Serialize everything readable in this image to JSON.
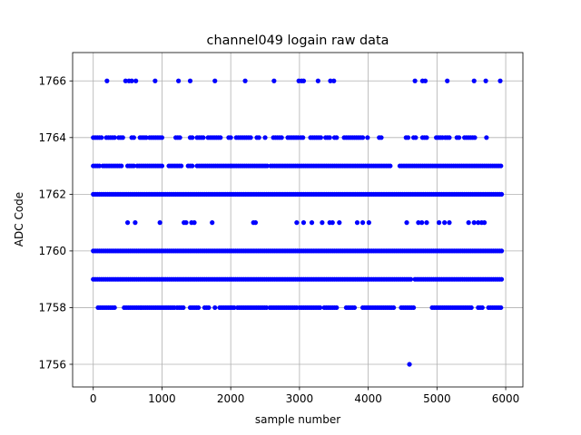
{
  "chart_data": {
    "type": "scatter",
    "title": "channel049 logain raw data",
    "xlabel": "sample number",
    "ylabel": "ADC Code",
    "xlim": [
      -300,
      6250
    ],
    "ylim": [
      1755.2,
      1767.0
    ],
    "xticks": [
      0,
      1000,
      2000,
      3000,
      4000,
      5000,
      6000
    ],
    "yticks": [
      1756,
      1758,
      1760,
      1762,
      1764,
      1766
    ],
    "grid": true,
    "legend": "none",
    "marker_color": "#0000ff",
    "series": [
      {
        "values_note_free": true,
        "points": [
          [
            200,
            1766
          ],
          [
            470,
            1766
          ],
          [
            520,
            1766
          ],
          [
            560,
            1766
          ],
          [
            620,
            1766
          ],
          [
            900,
            1766
          ],
          [
            1240,
            1766
          ],
          [
            1410,
            1766
          ],
          [
            1770,
            1766
          ],
          [
            2210,
            1766
          ],
          [
            2630,
            1766
          ],
          [
            2990,
            1766
          ],
          [
            3030,
            1766
          ],
          [
            3060,
            1766
          ],
          [
            3270,
            1766
          ],
          [
            3450,
            1766
          ],
          [
            3500,
            1766
          ],
          [
            4680,
            1766
          ],
          [
            4790,
            1766
          ],
          [
            4830,
            1766
          ],
          [
            5150,
            1766
          ],
          [
            5540,
            1766
          ],
          [
            5710,
            1766
          ],
          [
            5920,
            1766
          ],
          [
            500,
            1761
          ],
          [
            610,
            1761
          ],
          [
            970,
            1761
          ],
          [
            1320,
            1761
          ],
          [
            1350,
            1761
          ],
          [
            1430,
            1761
          ],
          [
            1470,
            1761
          ],
          [
            1730,
            1761
          ],
          [
            2330,
            1761
          ],
          [
            2360,
            1761
          ],
          [
            2960,
            1761
          ],
          [
            3060,
            1761
          ],
          [
            3180,
            1761
          ],
          [
            3330,
            1761
          ],
          [
            3440,
            1761
          ],
          [
            3480,
            1761
          ],
          [
            3580,
            1761
          ],
          [
            3840,
            1761
          ],
          [
            3920,
            1761
          ],
          [
            4010,
            1761
          ],
          [
            4560,
            1761
          ],
          [
            4730,
            1761
          ],
          [
            4780,
            1761
          ],
          [
            4850,
            1761
          ],
          [
            5030,
            1761
          ],
          [
            5110,
            1761
          ],
          [
            5180,
            1761
          ],
          [
            5460,
            1761
          ],
          [
            5540,
            1761
          ],
          [
            5600,
            1761
          ],
          [
            5650,
            1761
          ],
          [
            5690,
            1761
          ],
          [
            4600,
            1756
          ]
        ],
        "bands": [
          {
            "y": 1764,
            "ranges": [
              [
                0,
                120
              ],
              [
                190,
                330
              ],
              [
                370,
                450
              ],
              [
                560,
                590
              ],
              [
                680,
                780
              ],
              [
                820,
                1010
              ],
              [
                1200,
                1260
              ],
              [
                1410,
                1440
              ],
              [
                1510,
                1620
              ],
              [
                1670,
                1850
              ],
              [
                1970,
                2010
              ],
              [
                2080,
                2290
              ],
              [
                2380,
                2420
              ],
              [
                2500,
                2520
              ],
              [
                2620,
                2740
              ],
              [
                2830,
                2990
              ],
              [
                3020,
                3070
              ],
              [
                3160,
                3320
              ],
              [
                3380,
                3460
              ],
              [
                3510,
                3560
              ],
              [
                3650,
                3940
              ],
              [
                3990,
                4010
              ],
              [
                4160,
                4200
              ],
              [
                4550,
                4590
              ],
              [
                4660,
                4700
              ],
              [
                4790,
                4850
              ],
              [
                4990,
                5080
              ],
              [
                5120,
                5200
              ],
              [
                5290,
                5330
              ],
              [
                5400,
                5550
              ],
              [
                5720,
                5730
              ]
            ]
          },
          {
            "y": 1763,
            "ranges": [
              [
                0,
                100
              ],
              [
                140,
                420
              ],
              [
                500,
                600
              ],
              [
                640,
                1000
              ],
              [
                1100,
                1300
              ],
              [
                1380,
                1450
              ],
              [
                1510,
                2550
              ],
              [
                2580,
                3000
              ],
              [
                3030,
                4330
              ],
              [
                4460,
                5950
              ]
            ]
          },
          {
            "y": 1762,
            "ranges": [
              [
                0,
                5950
              ]
            ]
          },
          {
            "y": 1760,
            "ranges": [
              [
                0,
                5950
              ]
            ]
          },
          {
            "y": 1759,
            "ranges": [
              [
                0,
                4640
              ],
              [
                4680,
                5950
              ]
            ]
          },
          {
            "y": 1758,
            "ranges": [
              [
                70,
                330
              ],
              [
                450,
                700
              ],
              [
                700,
                1190
              ],
              [
                1220,
                1330
              ],
              [
                1410,
                1550
              ],
              [
                1620,
                1700
              ],
              [
                1770,
                1790
              ],
              [
                1840,
                2060
              ],
              [
                2100,
                2530
              ],
              [
                2570,
                2970
              ],
              [
                3000,
                3300
              ],
              [
                3360,
                3560
              ],
              [
                3680,
                3800
              ],
              [
                3920,
                4390
              ],
              [
                4480,
                4680
              ],
              [
                4930,
                5500
              ],
              [
                5600,
                5680
              ],
              [
                5750,
                5950
              ]
            ]
          }
        ]
      }
    ]
  }
}
